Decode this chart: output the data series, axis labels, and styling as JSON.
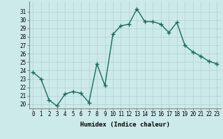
{
  "x": [
    0,
    1,
    2,
    3,
    4,
    5,
    6,
    7,
    8,
    9,
    10,
    11,
    12,
    13,
    14,
    15,
    16,
    17,
    18,
    19,
    20,
    21,
    22,
    23
  ],
  "y": [
    23.8,
    23.0,
    20.5,
    19.8,
    21.2,
    21.5,
    21.3,
    20.2,
    24.8,
    22.2,
    28.3,
    29.3,
    29.5,
    31.3,
    29.8,
    29.8,
    29.5,
    28.5,
    29.7,
    27.0,
    26.2,
    25.7,
    25.1,
    24.8
  ],
  "line_color": "#1a6b5a",
  "marker": "+",
  "marker_size": 4,
  "line_width": 1.0,
  "bg_color": "#cceaea",
  "grid_color": "#b0d0d0",
  "xlabel": "Humidex (Indice chaleur)",
  "ylim": [
    19.5,
    32.2
  ],
  "yticks": [
    20,
    21,
    22,
    23,
    24,
    25,
    26,
    27,
    28,
    29,
    30,
    31
  ],
  "xticks": [
    0,
    1,
    2,
    3,
    4,
    5,
    6,
    7,
    8,
    9,
    10,
    11,
    12,
    13,
    14,
    15,
    16,
    17,
    18,
    19,
    20,
    21,
    22,
    23
  ],
  "tick_fontsize": 5.5,
  "label_fontsize": 6.5
}
